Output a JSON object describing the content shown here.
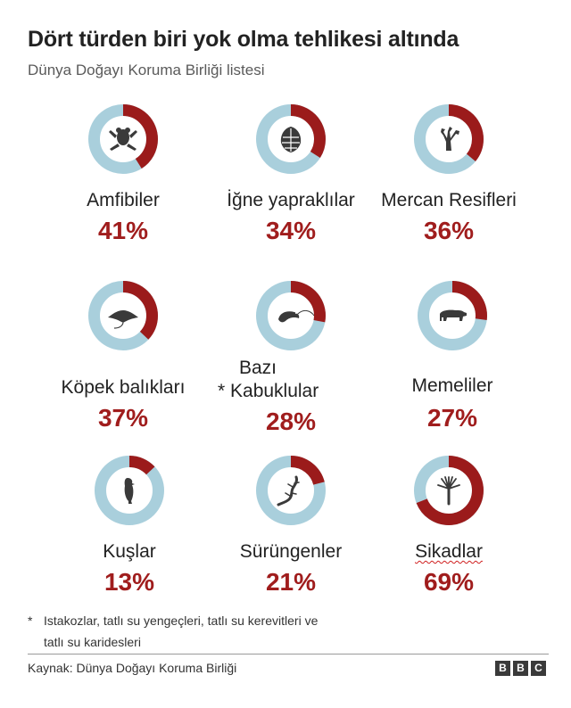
{
  "colors": {
    "threatened": "#9b1b1b",
    "remaining": "#a9cfdc",
    "icon": "#3a3a3a",
    "percent_text": "#a01d1d"
  },
  "chart_data": {
    "type": "donut",
    "title": "Dört türden biri yok olma tehlikesi altında",
    "subtitle": "Dünya Doğayı Koruma Birliği listesi",
    "unit": "%",
    "items": [
      {
        "label": "Amfibiler",
        "value": 41,
        "value_label": "41%",
        "icon": "frog-icon"
      },
      {
        "label": "İğne yapraklılar",
        "value": 34,
        "value_label": "34%",
        "icon": "pine-cone-icon"
      },
      {
        "label": "Mercan Resifleri",
        "value": 36,
        "value_label": "36%",
        "icon": "coral-icon"
      },
      {
        "label": "Köpek balıkları",
        "value": 37,
        "value_label": "37%",
        "icon": "manta-ray-icon"
      },
      {
        "label": "* Kabuklular",
        "label_prefix": "Bazı",
        "value": 28,
        "value_label": "28%",
        "icon": "shrimp-icon"
      },
      {
        "label": "Memeliler",
        "value": 27,
        "value_label": "27%",
        "icon": "bear-icon"
      },
      {
        "label": "Kuşlar",
        "value": 13,
        "value_label": "13%",
        "icon": "bird-icon"
      },
      {
        "label": "Sürüngenler",
        "value": 21,
        "value_label": "21%",
        "icon": "lizard-icon"
      },
      {
        "label": "Sikadlar",
        "value": 69,
        "value_label": "69%",
        "icon": "cycad-icon"
      }
    ]
  },
  "footnote": {
    "marker": "*",
    "line1": "Istakozlar, tatlı su yengeçleri, tatlı su kerevitleri ve",
    "line2": "tatlı su karidesleri"
  },
  "source": "Kaynak: Dünya Doğayı Koruma Birliği",
  "logo": [
    "B",
    "B",
    "C"
  ]
}
